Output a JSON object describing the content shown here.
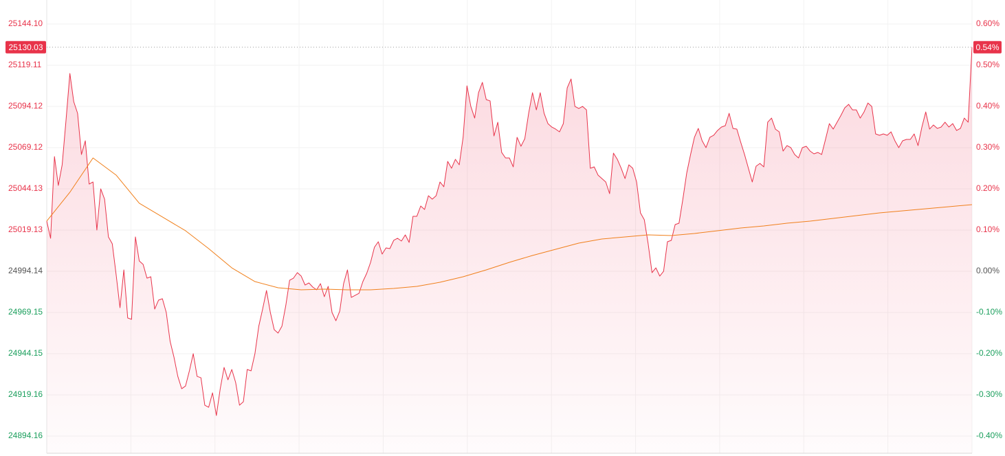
{
  "chart_data": {
    "type": "line",
    "ylim": [
      24883.77,
      25158.66
    ],
    "yticks": [
      {
        "value": 25144.1,
        "label": "25144.10"
      },
      {
        "value": 25119.11,
        "label": "25119.11"
      },
      {
        "value": 25094.12,
        "label": "25094.12"
      },
      {
        "value": 25069.12,
        "label": "25069.12"
      },
      {
        "value": 25044.13,
        "label": "25044.13"
      },
      {
        "value": 25019.13,
        "label": "25019.13"
      },
      24994.14,
      {
        "value": 24969.15,
        "label": "24969.15"
      },
      {
        "value": 24944.15,
        "label": "24944.15"
      },
      {
        "value": 24919.16,
        "label": "24919.16"
      },
      {
        "value": 24894.16,
        "label": "24894.16"
      }
    ],
    "y2lim": [
      -0.4417,
      0.6583
    ],
    "y2ticks": [
      {
        "value": 0.6,
        "label": "0.60%"
      },
      {
        "value": 0.5,
        "label": "0.50%"
      },
      {
        "value": 0.4,
        "label": "0.40%"
      },
      {
        "value": 0.3,
        "label": "0.30%"
      },
      {
        "value": 0.2,
        "label": "0.20%"
      },
      {
        "value": 0.1,
        "label": "0.10%"
      },
      {
        "value": 0,
        "label": "0.00%"
      },
      {
        "value": -0.1,
        "label": "-0.10%"
      },
      {
        "value": -0.2,
        "label": "-0.20%"
      },
      {
        "value": -0.3,
        "label": "-0.30%"
      },
      {
        "value": -0.4,
        "label": "-0.40%"
      }
    ],
    "grid": true,
    "up_color": "#e8334a",
    "down_color": "#1a9e5c",
    "flat_color": "#555555",
    "current": {
      "price": 25130.03,
      "change": {
        "value": 0.54,
        "label": "0.54%"
      }
    },
    "series": [
      {
        "color": "#e8334a",
        "fill": true,
        "values": [
          25024.55,
          25014.14,
          25063.71,
          25046.21,
          25058.71,
          25085.79,
          25114.11,
          25097.03,
          25089.95,
          25064.96,
          25073.29,
          25047.04,
          25048.29,
          25019.13,
          25044.13,
          25037.88,
          25014.97,
          25010.8,
          24992.06,
          24972.06,
          24994.97,
          24965.81,
          24964.98,
          25014.97,
          25000.39,
          24998.31,
          24989.97,
          24990.81,
          24971.23,
          24976.64,
          24977.48,
          24969.15,
          24951.65,
          24942.07,
          24930.4,
          24922.91,
          24924.57,
          24933.74,
          24944.15,
          24930.4,
          24929.57,
          24912.91,
          24911.66,
          24920.41,
          24906.66,
          24922.91,
          24935.82,
          24928.32,
          24934.57,
          24926.66,
          24912.91,
          24914.99,
          24934.57,
          24933.74,
          24944.15,
          24960.81,
          24971.23,
          24982.48,
          24969.15,
          24958.73,
          24956.65,
          24960.81,
          24973.31,
          24988.72,
          24989.97,
          24993.31,
          24991.22,
          24985.81,
          24987.06,
          24984.56,
          24982.89,
          24986.64,
          24978.73,
          24984.98,
          24969.15,
          24964.15,
          24969.98,
          24986.64,
          24994.97,
          24978.31,
          24979.56,
          24980.81,
          24987.89,
          24992.89,
          24999.56,
          25008.72,
          25012.05,
          25004.55,
          25008.3,
          25007.89,
          25012.89,
          25014.14,
          25012.47,
          25016.22,
          25011.64,
          25027.47,
          25027.47,
          25033.71,
          25031.63,
          25039.96,
          25037.88,
          25039.96,
          25048.29,
          25045.38,
          25060.79,
          25056.63,
          25062.04,
          25058.71,
          25075.37,
          25106.61,
          25094.12,
          25087.04,
          25102.45,
          25108.7,
          25098.28,
          25097.45,
          25076.2,
          25084.54,
          25066.21,
          25062.87,
          25062.87,
          25057.46,
          25075.37,
          25069.96,
          25074.54,
          25089.95,
          25102.45,
          25092.03,
          25102.45,
          25089.95,
          25083.7,
          25081.62,
          25080.37,
          25078.7,
          25083.7,
          25105.36,
          25110.78,
          25094.12,
          25092.87,
          25094.12,
          25092.03,
          25056.63,
          25057.46,
          25052.46,
          25050.38,
          25048.29,
          25041.21,
          25065.79,
          25062.04,
          25056.63,
          25050.38,
          25058.71,
          25056.63,
          25048.29,
          25029.55,
          25025.38,
          25010.8,
          24993.31,
          24996.22,
          24991.22,
          24994.14,
          25012.05,
          25012.89,
          25022.47,
          25023.3,
          25037.88,
          25053.71,
          25064.96,
          25075.37,
          25080.79,
          25073.29,
          25069.12,
          25075.37,
          25076.62,
          25079.54,
          25081.62,
          25082.45,
          25089.95,
          25080.79,
          25080.37,
          25072.46,
          25064.96,
          25056.63,
          25048.29,
          25057.88,
          25059.54,
          25057.46,
          25084.54,
          25087.04,
          25080.37,
          25078.7,
          25067.04,
          25070.37,
          25069.12,
          25064.96,
          25062.87,
          25069.12,
          25069.96,
          25067.04,
          25065.37,
          25066.21,
          25064.96,
          25074.12,
          25083.7,
          25080.37,
          25084.54,
          25088.7,
          25093.28,
          25095.37,
          25092.03,
          25092.03,
          25087.04,
          25090.78,
          25096.2,
          25094.12,
          25077.45,
          25076.62,
          25077.45,
          25076.62,
          25078.7,
          25073.29,
          25069.12,
          25073.29,
          25074.12,
          25074.12,
          25077.45,
          25070.37,
          25081.62,
          25090.78,
          25080.37,
          25082.87,
          25080.79,
          25081.62,
          25084.54,
          25081.62,
          25083.7,
          25079.54,
          25080.79,
          25087.04,
          25084.54,
          25130.03
        ]
      },
      {
        "color": "#f07f1a",
        "values": [
          25024.55,
          25042.05,
          25062.87,
          25052.46,
          25035.38,
          25027.05,
          25018.72,
          25007.89,
          24996.22,
          24987.89,
          24984.14,
          24982.89,
          24983.31,
          24982.89,
          24982.89,
          24983.73,
          24984.98,
          24987.47,
          24990.81,
          24994.97,
          24999.56,
          25003.72,
          25007.47,
          25011.22,
          25013.72,
          25014.97,
          25016.22,
          25015.8,
          25017.05,
          25018.72,
          25020.38,
          25021.63,
          25023.3,
          25024.55,
          25026.22,
          25027.88,
          25029.55,
          25030.8,
          25032.05,
          25033.3,
          25034.55
        ]
      }
    ]
  }
}
